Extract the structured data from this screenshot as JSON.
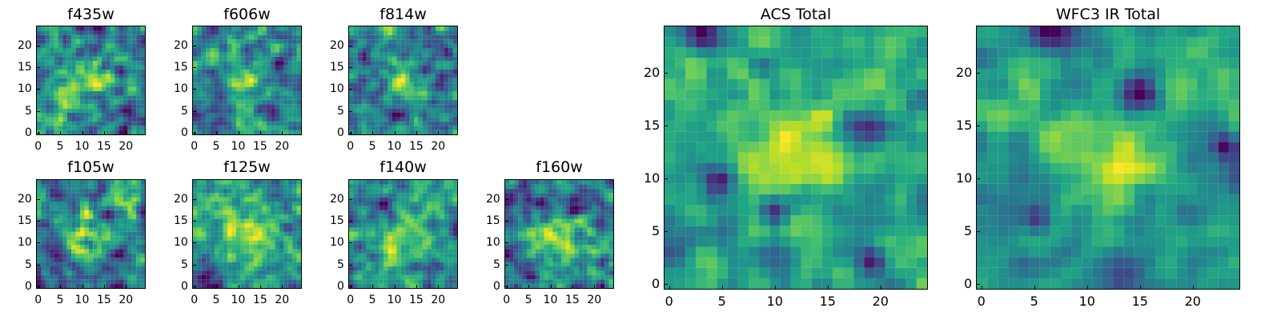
{
  "chart_data": {
    "type": "heatmap",
    "colormap": "viridis",
    "grid": false,
    "panels": [
      {
        "title": "f435w",
        "x_ticks": [
          0,
          5,
          10,
          15,
          20
        ],
        "y_ticks": [
          0,
          5,
          10,
          15,
          20
        ],
        "xlim": [
          -0.5,
          24.5
        ],
        "ylim": [
          -0.5,
          24.5
        ],
        "grid_size": 25,
        "texture": 0.95,
        "hotspots": [
          {
            "x": 12,
            "y": 11,
            "r": 4.5,
            "w": 0.22
          },
          {
            "x": 4,
            "y": 2,
            "r": 3.5,
            "w": 0.12
          }
        ],
        "lows": [
          {
            "x": 15,
            "y": 6,
            "r": 2.5,
            "w": 0.16
          },
          {
            "x": 22,
            "y": 22,
            "r": 2.0,
            "w": 0.16
          }
        ],
        "base": 0.58,
        "colorbias": 0.06
      },
      {
        "title": "f606w",
        "x_ticks": [
          0,
          5,
          10,
          15,
          20
        ],
        "y_ticks": [
          0,
          5,
          10,
          15,
          20
        ],
        "xlim": [
          -0.5,
          24.5
        ],
        "ylim": [
          -0.5,
          24.5
        ],
        "grid_size": 25,
        "texture": 0.95,
        "hotspots": [
          {
            "x": 12,
            "y": 12,
            "r": 3.5,
            "w": 0.3
          }
        ],
        "lows": [
          {
            "x": 19,
            "y": 16,
            "r": 2.0,
            "w": 0.2
          },
          {
            "x": 5,
            "y": 3,
            "r": 1.8,
            "w": 0.2
          }
        ],
        "base": 0.5,
        "colorbias": 0.0
      },
      {
        "title": "f814w",
        "x_ticks": [
          0,
          5,
          10,
          15,
          20
        ],
        "y_ticks": [
          0,
          5,
          10,
          15,
          20
        ],
        "xlim": [
          -0.5,
          24.5
        ],
        "ylim": [
          -0.5,
          24.5
        ],
        "grid_size": 25,
        "texture": 0.95,
        "hotspots": [
          {
            "x": 12,
            "y": 12,
            "r": 3.5,
            "w": 0.28
          }
        ],
        "lows": [
          {
            "x": 10,
            "y": 4,
            "r": 2.0,
            "w": 0.22
          },
          {
            "x": 21,
            "y": 12,
            "r": 2.0,
            "w": 0.2
          }
        ],
        "base": 0.5,
        "colorbias": 0.0
      },
      {
        "title": "f105w",
        "x_ticks": [
          0,
          5,
          10,
          15,
          20
        ],
        "y_ticks": [
          0,
          5,
          10,
          15,
          20
        ],
        "xlim": [
          -0.5,
          24.5
        ],
        "ylim": [
          -0.5,
          24.5
        ],
        "grid_size": 25,
        "texture": 0.85,
        "hotspots": [
          {
            "x": 12,
            "y": 12,
            "r": 4.5,
            "w": 0.22
          },
          {
            "x": 20,
            "y": 20,
            "r": 3.5,
            "w": 0.24
          }
        ],
        "lows": [
          {
            "x": 15,
            "y": 16,
            "r": 1.8,
            "w": 0.32
          },
          {
            "x": 4,
            "y": 6,
            "r": 2.0,
            "w": 0.18
          }
        ],
        "base": 0.52,
        "colorbias": 0.0
      },
      {
        "title": "f125w",
        "x_ticks": [
          0,
          5,
          10,
          15,
          20
        ],
        "y_ticks": [
          0,
          5,
          10,
          15,
          20
        ],
        "xlim": [
          -0.5,
          24.5
        ],
        "ylim": [
          -0.5,
          24.5
        ],
        "grid_size": 25,
        "texture": 0.8,
        "hotspots": [
          {
            "x": 12,
            "y": 12,
            "r": 5.0,
            "w": 0.24
          },
          {
            "x": 5,
            "y": 18,
            "r": 3.0,
            "w": 0.18
          }
        ],
        "lows": [
          {
            "x": 3,
            "y": 2,
            "r": 2.5,
            "w": 0.34
          },
          {
            "x": 20,
            "y": 12,
            "r": 2.0,
            "w": 0.2
          }
        ],
        "base": 0.54,
        "colorbias": 0.0
      },
      {
        "title": "f140w",
        "x_ticks": [
          0,
          5,
          10,
          15,
          20
        ],
        "y_ticks": [
          0,
          5,
          10,
          15,
          20
        ],
        "xlim": [
          -0.5,
          24.5
        ],
        "ylim": [
          -0.5,
          24.5
        ],
        "grid_size": 25,
        "texture": 0.82,
        "hotspots": [
          {
            "x": 11,
            "y": 11,
            "r": 5.0,
            "w": 0.3
          }
        ],
        "lows": [
          {
            "x": 7,
            "y": 18,
            "r": 2.0,
            "w": 0.24
          },
          {
            "x": 17,
            "y": 4,
            "r": 2.2,
            "w": 0.22
          }
        ],
        "base": 0.54,
        "colorbias": 0.02
      },
      {
        "title": "f160w",
        "x_ticks": [
          0,
          5,
          10,
          15,
          20
        ],
        "y_ticks": [
          0,
          5,
          10,
          15,
          20
        ],
        "xlim": [
          -0.5,
          24.5
        ],
        "ylim": [
          -0.5,
          24.5
        ],
        "grid_size": 25,
        "texture": 0.82,
        "hotspots": [
          {
            "x": 12,
            "y": 11,
            "r": 4.5,
            "w": 0.34
          }
        ],
        "lows": [
          {
            "x": 14,
            "y": 18,
            "r": 1.8,
            "w": 0.3
          },
          {
            "x": 4,
            "y": 5,
            "r": 2.0,
            "w": 0.18
          }
        ],
        "base": 0.53,
        "colorbias": 0.01
      },
      {
        "title": "ACS Total",
        "x_ticks": [
          0,
          5,
          10,
          15,
          20
        ],
        "y_ticks": [
          0,
          5,
          10,
          15,
          20
        ],
        "xlim": [
          -0.5,
          24.5
        ],
        "ylim": [
          -0.5,
          24.5
        ],
        "grid_size": 25,
        "texture": 0.68,
        "hotspots": [
          {
            "x": 12,
            "y": 12,
            "r": 3.2,
            "w": 0.38
          }
        ],
        "lows": [
          {
            "x": 3,
            "y": 24,
            "r": 1.2,
            "w": 0.45
          },
          {
            "x": 19,
            "y": 15,
            "r": 1.2,
            "w": 0.42
          },
          {
            "x": 10,
            "y": 7,
            "r": 1.0,
            "w": 0.4
          },
          {
            "x": 5,
            "y": 10,
            "r": 1.0,
            "w": 0.42
          },
          {
            "x": 19,
            "y": 2,
            "r": 1.1,
            "w": 0.42
          }
        ],
        "base": 0.62,
        "colorbias": 0.02
      },
      {
        "title": "WFC3 IR Total",
        "x_ticks": [
          0,
          5,
          10,
          15,
          20
        ],
        "y_ticks": [
          0,
          5,
          10,
          15,
          20
        ],
        "xlim": [
          -0.5,
          24.5
        ],
        "ylim": [
          -0.5,
          24.5
        ],
        "grid_size": 25,
        "texture": 0.58,
        "hotspots": [
          {
            "x": 12,
            "y": 12,
            "r": 3.8,
            "w": 0.4
          },
          {
            "x": 20,
            "y": 20,
            "r": 2.6,
            "w": 0.24
          },
          {
            "x": 3,
            "y": 17,
            "r": 2.2,
            "w": 0.18
          }
        ],
        "lows": [
          {
            "x": 6,
            "y": 24,
            "r": 1.3,
            "w": 0.45
          },
          {
            "x": 15,
            "y": 18,
            "r": 1.3,
            "w": 0.44
          },
          {
            "x": 23,
            "y": 13,
            "r": 1.0,
            "w": 0.44
          },
          {
            "x": 5,
            "y": 6,
            "r": 1.0,
            "w": 0.35
          },
          {
            "x": 13,
            "y": 0,
            "r": 1.0,
            "w": 0.35
          }
        ],
        "base": 0.58,
        "colorbias": 0.0
      }
    ]
  }
}
